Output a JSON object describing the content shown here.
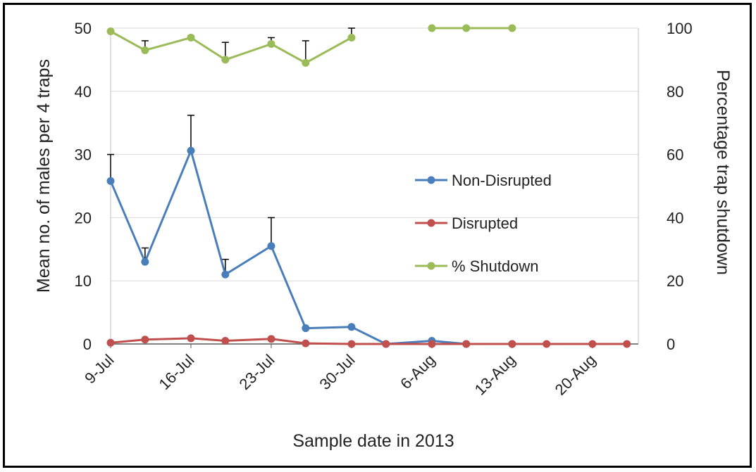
{
  "chart_data": {
    "type": "line",
    "title": "",
    "xlabel": "Sample date in 2013",
    "ylabel_left": "Mean no. of males per 4 traps",
    "ylabel_right": "Percentage trap shutdown",
    "x_tick_labels": [
      "9-Jul",
      "16-Jul",
      "23-Jul",
      "30-Jul",
      "6-Aug",
      "13-Aug",
      "20-Aug"
    ],
    "x_tick_dates": [
      "2013-07-09",
      "2013-07-16",
      "2013-07-23",
      "2013-07-30",
      "2013-08-06",
      "2013-08-13",
      "2013-08-20"
    ],
    "xlim": [
      "2013-07-09",
      "2013-08-24"
    ],
    "ylim_left": [
      0,
      50
    ],
    "yticks_left": [
      0,
      10,
      20,
      30,
      40,
      50
    ],
    "ylim_right": [
      0,
      100
    ],
    "yticks_right": [
      0,
      20,
      40,
      60,
      80,
      100
    ],
    "grid": "horizontal",
    "legend_placement": "center-right",
    "series": [
      {
        "name": "Non-Disrupted",
        "axis": "left",
        "color": "#4a7ebb",
        "points": [
          {
            "x": "2013-07-09",
            "y": 25.8,
            "err": 4.2
          },
          {
            "x": "2013-07-12",
            "y": 13.0,
            "err": 2.2
          },
          {
            "x": "2013-07-16",
            "y": 30.6,
            "err": 5.6
          },
          {
            "x": "2013-07-19",
            "y": 11.0,
            "err": 2.4
          },
          {
            "x": "2013-07-23",
            "y": 15.5,
            "err": 4.5
          },
          {
            "x": "2013-07-26",
            "y": 2.5,
            "err": 0
          },
          {
            "x": "2013-07-30",
            "y": 2.7,
            "err": 0
          },
          {
            "x": "2013-08-02",
            "y": 0.0,
            "err": 0
          },
          {
            "x": "2013-08-06",
            "y": 0.5,
            "err": 0
          },
          {
            "x": "2013-08-09",
            "y": 0.0,
            "err": 0
          },
          {
            "x": "2013-08-13",
            "y": 0.0,
            "err": 0
          }
        ]
      },
      {
        "name": "Disrupted",
        "axis": "left",
        "color": "#c0504d",
        "points": [
          {
            "x": "2013-07-09",
            "y": 0.2,
            "err": 0
          },
          {
            "x": "2013-07-12",
            "y": 0.7,
            "err": 0
          },
          {
            "x": "2013-07-16",
            "y": 0.9,
            "err": 0
          },
          {
            "x": "2013-07-19",
            "y": 0.5,
            "err": 0
          },
          {
            "x": "2013-07-23",
            "y": 0.8,
            "err": 0
          },
          {
            "x": "2013-07-26",
            "y": 0.1,
            "err": 0
          },
          {
            "x": "2013-07-30",
            "y": 0.0,
            "err": 0
          },
          {
            "x": "2013-08-02",
            "y": 0.0,
            "err": 0
          },
          {
            "x": "2013-08-06",
            "y": 0.0,
            "err": 0
          },
          {
            "x": "2013-08-09",
            "y": 0.0,
            "err": 0
          },
          {
            "x": "2013-08-13",
            "y": 0.0,
            "err": 0
          },
          {
            "x": "2013-08-16",
            "y": 0.0,
            "err": 0
          },
          {
            "x": "2013-08-20",
            "y": 0.0,
            "err": 0
          },
          {
            "x": "2013-08-23",
            "y": 0.0,
            "err": 0
          }
        ]
      },
      {
        "name": "% Shutdown",
        "axis": "right",
        "color": "#9bbb59",
        "segments": [
          [
            {
              "x": "2013-07-09",
              "y": 99,
              "err": 0
            },
            {
              "x": "2013-07-12",
              "y": 93,
              "err": 3
            },
            {
              "x": "2013-07-16",
              "y": 97,
              "err": 0.5
            },
            {
              "x": "2013-07-19",
              "y": 90,
              "err": 5.5
            },
            {
              "x": "2013-07-23",
              "y": 95,
              "err": 2
            },
            {
              "x": "2013-07-26",
              "y": 89,
              "err": 7
            },
            {
              "x": "2013-07-30",
              "y": 97,
              "err": 3
            }
          ],
          [
            {
              "x": "2013-08-06",
              "y": 100,
              "err": 0
            },
            {
              "x": "2013-08-09",
              "y": 100,
              "err": 0
            },
            {
              "x": "2013-08-13",
              "y": 100,
              "err": 0
            }
          ]
        ]
      }
    ]
  }
}
